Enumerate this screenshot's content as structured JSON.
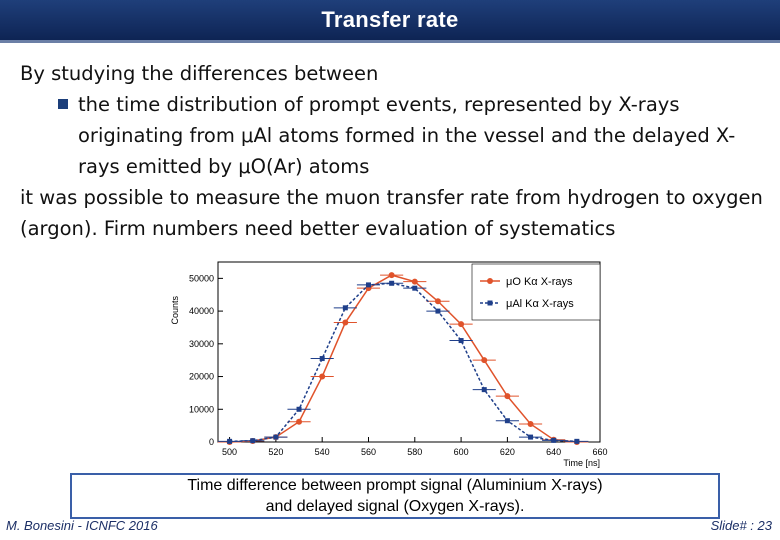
{
  "slide": {
    "title": "Transfer rate",
    "intro": "By studying the differences between",
    "bullet": "the time distribution of prompt events, represented by X-rays originating from μAl atoms formed in the vessel and the delayed X-rays emitted by μO(Ar) atoms",
    "conclusion": "it was possible to measure the muon transfer rate from hydrogen to oxygen (argon). Firm numbers need better evaluation of systematics",
    "caption": "Time difference between prompt signal (Aluminium X-rays)\nand delayed signal (Oxygen X-rays).",
    "footer_left": "M. Bonesini - ICNFC 2016",
    "footer_right": "Slide# : 23"
  },
  "colors": {
    "title_bar": "#14306a",
    "series_o": "#e0532b",
    "series_al": "#1f3f8a",
    "caption_border": "#3a5fa8"
  },
  "chart_data": {
    "type": "scatter",
    "xlabel": "Time [ns]",
    "ylabel": "Counts",
    "xlim": [
      495,
      660
    ],
    "ylim": [
      0,
      55000
    ],
    "x_ticks": [
      500,
      520,
      540,
      560,
      580,
      600,
      620,
      640,
      660
    ],
    "y_ticks": [
      0,
      10000,
      20000,
      30000,
      40000,
      50000
    ],
    "x_tick_labels": [
      "500",
      "520",
      "540",
      "560",
      "580",
      "600",
      "620",
      "640",
      "660"
    ],
    "y_tick_labels": [
      "0",
      "10000",
      "20000",
      "30000",
      "40000",
      "50000"
    ],
    "legend_position": "top-right",
    "series": [
      {
        "name": "μO Kα X-rays",
        "color": "#e0532b",
        "style": "solid",
        "marker": "circle",
        "x": [
          500,
          510,
          520,
          530,
          540,
          550,
          560,
          570,
          580,
          590,
          600,
          610,
          620,
          630,
          640,
          650
        ],
        "y": [
          0,
          300,
          1500,
          6200,
          20000,
          36500,
          47000,
          51000,
          49000,
          43000,
          36000,
          25000,
          14000,
          5500,
          700,
          0
        ]
      },
      {
        "name": "μAl Kα X-rays",
        "color": "#1f3f8a",
        "style": "dashed",
        "marker": "square",
        "x": [
          500,
          510,
          520,
          530,
          540,
          550,
          560,
          570,
          580,
          590,
          600,
          610,
          620,
          630,
          640,
          650
        ],
        "y": [
          200,
          400,
          1500,
          10000,
          25500,
          41000,
          48000,
          48500,
          47000,
          40000,
          31000,
          16000,
          6500,
          1500,
          500,
          200
        ]
      }
    ]
  }
}
